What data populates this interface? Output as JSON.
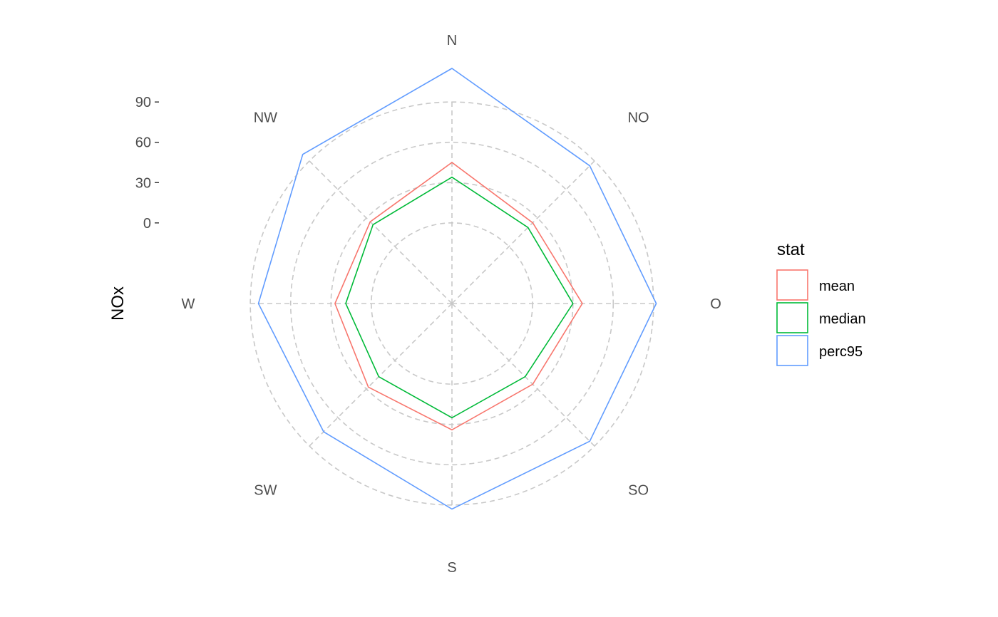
{
  "chart_data": {
    "type": "line",
    "coord": "polar",
    "directions": [
      "N",
      "NO",
      "O",
      "SO",
      "S",
      "SW",
      "W",
      "NW"
    ],
    "ylabel": "NOx",
    "yticks": [
      0,
      30,
      60,
      90
    ],
    "ylim": [
      -60,
      115
    ],
    "grid": true,
    "legend": {
      "title": "stat",
      "position": "right"
    },
    "series": [
      {
        "name": "mean",
        "color": "#F8766D",
        "values": [
          45,
          25,
          37,
          25,
          34,
          28,
          27,
          26
        ]
      },
      {
        "name": "median",
        "color": "#00BA38",
        "values": [
          34,
          20,
          30,
          17,
          25,
          17,
          19,
          23
        ]
      },
      {
        "name": "perc95",
        "color": "#619CFF",
        "values": [
          115,
          85,
          92,
          85,
          93,
          75,
          84,
          97
        ]
      }
    ]
  }
}
